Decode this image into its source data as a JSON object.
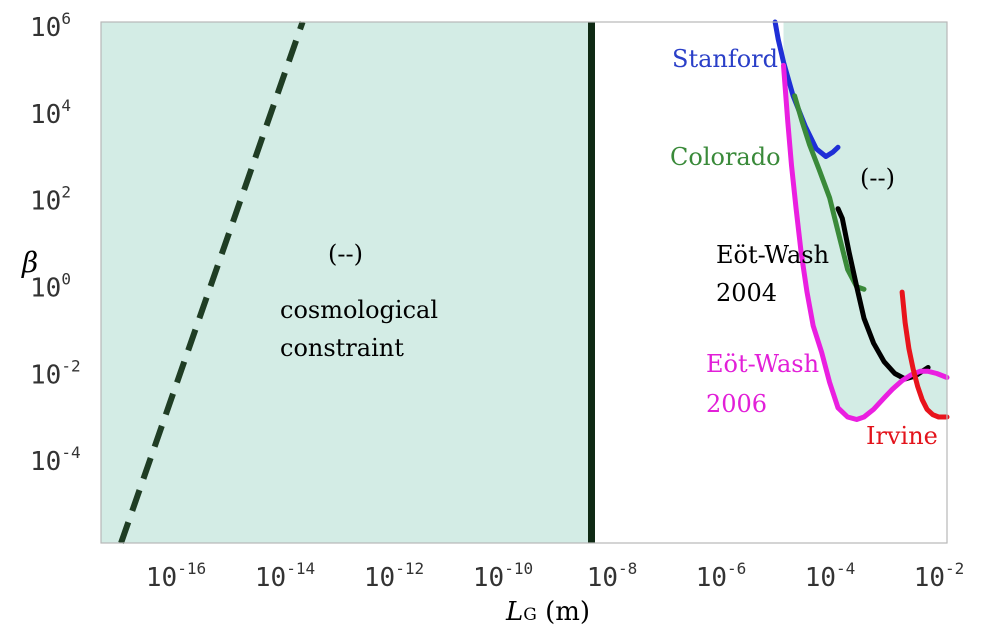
{
  "chart_data": {
    "type": "line",
    "xlabel": "L",
    "xlabel_sub": "G",
    "xlabel_unit": " (m)",
    "ylabel": "β",
    "xscale": "log",
    "yscale": "log",
    "xlim": [
      3e-18,
      0.01
    ],
    "ylim": [
      1e-06,
      1000000.0
    ],
    "x_ticks": [
      1e-16,
      1e-14,
      1e-12,
      1e-10,
      1e-08,
      1e-06,
      0.0001,
      0.01
    ],
    "x_tick_labels": [
      {
        "base": "10",
        "exp": "-16"
      },
      {
        "base": "10",
        "exp": "-14"
      },
      {
        "base": "10",
        "exp": "-12"
      },
      {
        "base": "10",
        "exp": "-10"
      },
      {
        "base": "10",
        "exp": "-8"
      },
      {
        "base": "10",
        "exp": "-6"
      },
      {
        "base": "10",
        "exp": "-4"
      },
      {
        "base": "10",
        "exp": "-2"
      }
    ],
    "y_ticks": [
      1000000.0,
      10000.0,
      100.0,
      1.0,
      0.01,
      0.0001
    ],
    "y_tick_labels": [
      {
        "base": "10",
        "exp": "6"
      },
      {
        "base": "10",
        "exp": "4"
      },
      {
        "base": "10",
        "exp": "2"
      },
      {
        "base": "10",
        "exp": "0"
      },
      {
        "base": "10",
        "exp": "-2"
      },
      {
        "base": "10",
        "exp": "-4"
      }
    ],
    "grid": false,
    "regions": [
      {
        "kind": "excluded",
        "color": "#d3ece5",
        "x_from": 3e-18,
        "x_to": 3e-09
      },
      {
        "kind": "excluded",
        "color": "#d3ece5",
        "x_from": 1e-05,
        "x_to": 0.01,
        "upper_boundary": "envelope of experimental curves"
      }
    ],
    "vertical_line": {
      "x": 3e-09,
      "color": "#0f2a14"
    },
    "dashed_line": {
      "color": "#1f3d24",
      "x": [
        7e-18,
        1.5e-14
      ],
      "y": [
        1e-06,
        1000000.0
      ]
    },
    "series": [
      {
        "name": "Stanford",
        "color": "#1f2fd6",
        "x": [
          7e-06,
          8e-06,
          1e-05,
          1.5e-05,
          2.5e-05,
          4e-05,
          6e-05,
          8e-05,
          0.0001
        ],
        "y": [
          1000000.0,
          400000.0,
          120000.0,
          20000.0,
          4000,
          1200,
          800,
          1000,
          1300
        ]
      },
      {
        "name": "Colorado",
        "color": "#3a8a3a",
        "x": [
          1.6e-05,
          1.8e-05,
          2.2e-05,
          3e-05,
          4.5e-05,
          7e-05,
          0.0001,
          0.00015,
          0.00022,
          0.0003
        ],
        "y": [
          20000,
          12000,
          5000,
          1500,
          400,
          90,
          15,
          2,
          0.8,
          0.7
        ]
      },
      {
        "name": "Eöt-Wash 2004",
        "color": "#000000",
        "x": [
          0.0001,
          0.00012,
          0.00016,
          0.00022,
          0.0003,
          0.00045,
          0.0007,
          0.0011,
          0.0017,
          0.0026,
          0.0035,
          0.0045
        ],
        "y": [
          50,
          30,
          5,
          0.8,
          0.15,
          0.04,
          0.015,
          0.008,
          0.006,
          0.007,
          0.009,
          0.011
        ]
      },
      {
        "name": "Eöt-Wash 2006",
        "color": "#ea1fe0",
        "x": [
          1e-05,
          1.2e-05,
          1.4e-05,
          1.7e-05,
          2.1e-05,
          2.7e-05,
          3.5e-05,
          5e-05,
          7e-05,
          0.0001,
          0.00015,
          0.00022,
          0.0003,
          0.00045,
          0.0007,
          0.001,
          0.0015,
          0.0022,
          0.0032,
          0.0045,
          0.0065,
          0.01
        ],
        "y": [
          100000.0,
          5000,
          500,
          50,
          5,
          0.6,
          0.1,
          0.025,
          0.005,
          0.0013,
          0.0008,
          0.0007,
          0.0008,
          0.0012,
          0.0022,
          0.0035,
          0.0055,
          0.0075,
          0.009,
          0.009,
          0.008,
          0.0065
        ]
      },
      {
        "name": "Irvine",
        "color": "#e8141c",
        "x": [
          0.0015,
          0.0017,
          0.002,
          0.0024,
          0.0029,
          0.0035,
          0.0043,
          0.0055,
          0.007,
          0.01
        ],
        "y": [
          0.6,
          0.12,
          0.03,
          0.01,
          0.004,
          0.002,
          0.0012,
          0.0009,
          0.0008,
          0.0008
        ]
      }
    ],
    "annotations": [
      {
        "key": "stanford",
        "text": "Stanford",
        "color": "#2a3fc8"
      },
      {
        "key": "colorado",
        "text": "Colorado",
        "color": "#3a8a3a"
      },
      {
        "key": "ew2004a",
        "text": "Eöt-Wash",
        "color": "#000000"
      },
      {
        "key": "ew2004b",
        "text": "2004",
        "color": "#000000"
      },
      {
        "key": "ew2006a",
        "text": "Eöt-Wash",
        "color": "#e21fd8"
      },
      {
        "key": "ew2006b",
        "text": "2006",
        "color": "#e21fd8"
      },
      {
        "key": "irvine",
        "text": "Irvine",
        "color": "#e3141c"
      },
      {
        "key": "excl_right",
        "text": "(--)",
        "color": "#000000"
      },
      {
        "key": "excl_left",
        "text": "(--)",
        "color": "#000000"
      },
      {
        "key": "cosmo1",
        "text": "cosmological",
        "color": "#000000"
      },
      {
        "key": "cosmo2",
        "text": "constraint",
        "color": "#000000"
      }
    ]
  }
}
